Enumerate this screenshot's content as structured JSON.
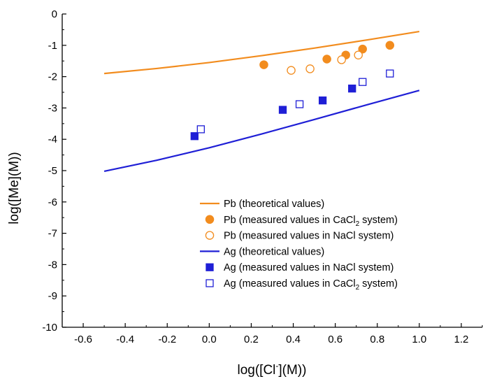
{
  "chart_data": {
    "type": "line",
    "xlabel": "log([Cl⁻](M))",
    "ylabel": "log([Me](M))",
    "xlim": [
      -0.7,
      1.3
    ],
    "ylim": [
      -10,
      0
    ],
    "xticks": [
      -0.6,
      -0.4,
      -0.2,
      0.0,
      0.2,
      0.4,
      0.6,
      0.8,
      1.0,
      1.2
    ],
    "xtick_labels": [
      "-0.6",
      "-0.4",
      "-0.2",
      "0.0",
      "0.2",
      "0.4",
      "0.6",
      "0.8",
      "1.0",
      "1.2"
    ],
    "yticks": [
      0,
      -1,
      -2,
      -3,
      -4,
      -5,
      -6,
      -7,
      -8,
      -9,
      -10
    ],
    "ytick_labels": [
      "0",
      "-1",
      "-2",
      "-3",
      "-4",
      "-5",
      "-6",
      "-7",
      "-8",
      "-9",
      "-10"
    ],
    "grid": false,
    "legend_position": "bottom-right",
    "series": [
      {
        "name": "Pb (theoretical values)",
        "legend": {
          "pre": "Pb (theoretical values)",
          "sub": "",
          "post": ""
        },
        "kind": "line",
        "color": "#f28c1e",
        "x": [
          -0.5,
          -0.25,
          0.0,
          0.25,
          0.5,
          0.75,
          1.0
        ],
        "y": [
          -1.9,
          -1.74,
          -1.55,
          -1.33,
          -1.09,
          -0.83,
          -0.56
        ]
      },
      {
        "name": "Pb (measured values in CaCl2 system)",
        "legend": {
          "pre": "Pb (measured values in CaCl",
          "sub": "2",
          "post": " system)"
        },
        "kind": "marker",
        "marker": "circle",
        "filled": true,
        "color": "#f28c1e",
        "x": [
          0.26,
          0.56,
          0.65,
          0.73,
          0.86
        ],
        "y": [
          -1.62,
          -1.44,
          -1.31,
          -1.12,
          -1.0
        ]
      },
      {
        "name": "Pb (measured values in NaCl system)",
        "legend": {
          "pre": "Pb (measured values in NaCl system)",
          "sub": "",
          "post": ""
        },
        "kind": "marker",
        "marker": "circle",
        "filled": false,
        "color": "#f28c1e",
        "x": [
          0.39,
          0.48,
          0.63,
          0.71
        ],
        "y": [
          -1.8,
          -1.75,
          -1.46,
          -1.31
        ]
      },
      {
        "name": "Ag (theoretical values)",
        "legend": {
          "pre": "Ag (theoretical values)",
          "sub": "",
          "post": ""
        },
        "kind": "line",
        "color": "#1f1fd6",
        "x": [
          -0.5,
          -0.25,
          0.0,
          0.25,
          0.5,
          0.75,
          1.0
        ],
        "y": [
          -5.02,
          -4.67,
          -4.27,
          -3.83,
          -3.37,
          -2.9,
          -2.44
        ]
      },
      {
        "name": "Ag (measured values in NaCl system)",
        "legend": {
          "pre": "Ag (measured values in NaCl system)",
          "sub": "",
          "post": ""
        },
        "kind": "marker",
        "marker": "square",
        "filled": true,
        "color": "#1f1fd6",
        "x": [
          -0.07,
          0.35,
          0.54,
          0.68
        ],
        "y": [
          -3.9,
          -3.06,
          -2.76,
          -2.38
        ]
      },
      {
        "name": "Ag (measured values in CaCl2 system)",
        "legend": {
          "pre": "Ag (measured values in CaCl",
          "sub": "2",
          "post": " system)"
        },
        "kind": "marker",
        "marker": "square",
        "filled": false,
        "color": "#1f1fd6",
        "x": [
          -0.04,
          0.43,
          0.73,
          0.86
        ],
        "y": [
          -3.68,
          -2.88,
          -2.17,
          -1.9
        ]
      }
    ]
  }
}
